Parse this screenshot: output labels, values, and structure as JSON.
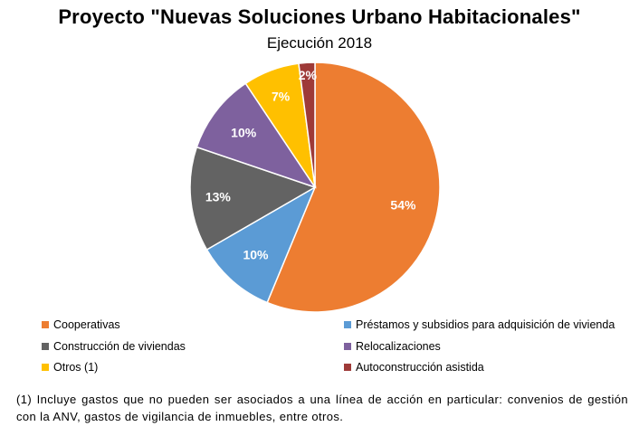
{
  "chart_data": {
    "type": "pie",
    "title": "Proyecto \"Nuevas Soluciones Urbano Habitacionales\"",
    "subtitle": "Ejecución 2018",
    "categories": [
      "Cooperativas",
      "Préstamos y subsidios para adquisición de vivienda",
      "Construcción de viviendas",
      "Relocalizaciones",
      "Otros (1)",
      "Autoconstrucción asistida"
    ],
    "values": [
      54,
      10,
      13,
      10,
      7,
      2
    ],
    "data_labels": [
      "54%",
      "10%",
      "13%",
      "10%",
      "7%",
      "2%"
    ],
    "colors": [
      "#ED7D31",
      "#5B9BD5",
      "#636363",
      "#7E619E",
      "#FFC000",
      "#9E3A38"
    ],
    "label_colors": [
      "#ffffff",
      "#ffffff",
      "#ffffff",
      "#ffffff",
      "#ffffff",
      "#ffffff"
    ],
    "legend_position": "bottom",
    "start_angle_deg": 0,
    "direction": "clockwise"
  },
  "legend": {
    "items": [
      {
        "label": "Cooperativas",
        "color": "#ED7D31"
      },
      {
        "label": "Préstamos y subsidios para adquisición de vivienda",
        "color": "#5B9BD5"
      },
      {
        "label": "Construcción de viviendas",
        "color": "#636363"
      },
      {
        "label": "Relocalizaciones",
        "color": "#7E619E"
      },
      {
        "label": "Otros (1)",
        "color": "#FFC000"
      },
      {
        "label": "Autoconstrucción asistida",
        "color": "#9E3A38"
      }
    ]
  },
  "footnote": "(1) Incluye gastos que no pueden ser asociados a una línea de acción en particular: convenios de gestión con la ANV, gastos de vigilancia de inmuebles, entre otros."
}
